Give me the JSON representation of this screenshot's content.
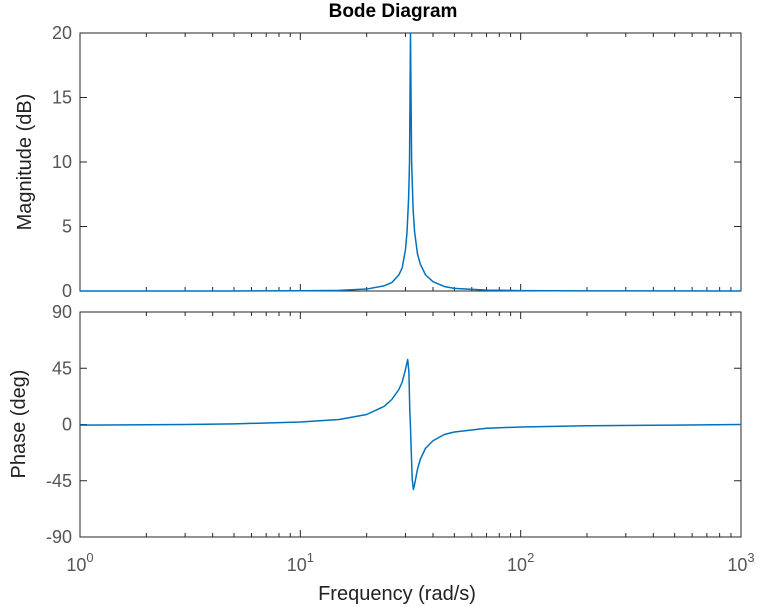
{
  "chart_data": {
    "type": "line",
    "title": "Bode Diagram",
    "xlabel": "Frequency  (rad/s)",
    "x_scale": "log",
    "xlim": [
      1,
      1000
    ],
    "x_tick_labels": [
      {
        "base": "10",
        "exp": "0"
      },
      {
        "base": "10",
        "exp": "1"
      },
      {
        "base": "10",
        "exp": "2"
      },
      {
        "base": "10",
        "exp": "3"
      }
    ],
    "subplots": [
      {
        "ylabel": "Magnitude (dB)",
        "ylim": [
          0,
          20
        ],
        "yticks": [
          "0",
          "5",
          "10",
          "15",
          "20"
        ],
        "series": [
          {
            "color": "#0072BD",
            "x": [
              1,
              5,
              10,
              15,
              20,
              24,
              26,
              28,
              29,
              30,
              30.5,
              31,
              31.3,
              31.62,
              32,
              32.5,
              33,
              34,
              35,
              37,
              40,
              45,
              50,
              70,
              100,
              200,
              1000
            ],
            "y": [
              0,
              0,
              0.02,
              0.05,
              0.15,
              0.4,
              0.65,
              1.25,
              1.8,
              3.2,
              4.6,
              7.2,
              10.0,
              20.0,
              10.0,
              6.3,
              4.6,
              2.9,
              2.1,
              1.25,
              0.72,
              0.35,
              0.2,
              0.07,
              0.03,
              0.01,
              0
            ]
          }
        ]
      },
      {
        "ylabel": "Phase (deg)",
        "ylim": [
          -90,
          90
        ],
        "yticks": [
          "-90",
          "-45",
          "0",
          "45",
          "90"
        ],
        "series": [
          {
            "color": "#0072BD",
            "x": [
              1,
              3,
              5,
              10,
              15,
              20,
              24,
              26,
              28,
              29,
              30,
              30.7,
              31.1,
              31.4,
              31.62,
              31.85,
              32.2,
              32.6,
              33,
              34,
              35,
              37,
              40,
              45,
              50,
              70,
              100,
              200,
              500,
              1000
            ],
            "y": [
              -0.5,
              0,
              0.5,
              2,
              4,
              8,
              14.5,
              20,
              28,
              34,
              44,
              52,
              42,
              10,
              -2,
              -20,
              -44,
              -52,
              -48,
              -36,
              -28,
              -19,
              -13,
              -8,
              -6,
              -3,
              -2,
              -1,
              -0.5,
              0
            ]
          }
        ]
      }
    ]
  }
}
